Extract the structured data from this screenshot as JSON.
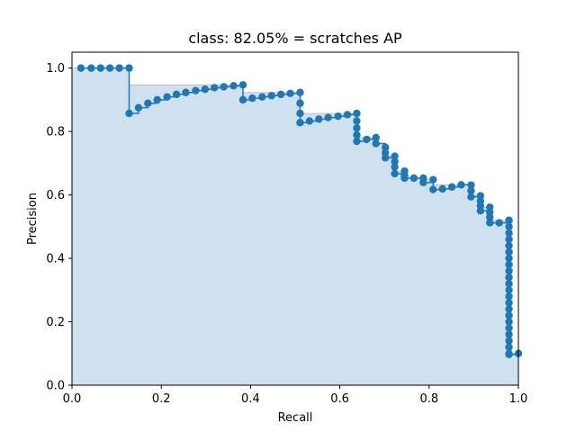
{
  "chart_data": {
    "type": "line",
    "title": "class: 82.05% = scratches AP",
    "xlabel": "Recall",
    "ylabel": "Precision",
    "xlim": [
      0,
      1
    ],
    "ylim": [
      0,
      1.05
    ],
    "xticks": [
      "0.0",
      "0.2",
      "0.4",
      "0.6",
      "0.8",
      "1.0"
    ],
    "yticks": [
      "0.0",
      "0.2",
      "0.4",
      "0.6",
      "0.8",
      "1.0"
    ],
    "grid": false,
    "colors": {
      "series": "#1f77b4",
      "fill": "#cfe1ef",
      "fill_edge": "#d9a6a6"
    },
    "series": [
      {
        "marker": "circle",
        "x": [
          0.02,
          0.043,
          0.064,
          0.085,
          0.106,
          0.128,
          0.128,
          0.149,
          0.17,
          0.191,
          0.213,
          0.234,
          0.255,
          0.277,
          0.298,
          0.319,
          0.34,
          0.362,
          0.383,
          0.383,
          0.404,
          0.426,
          0.447,
          0.468,
          0.489,
          0.511,
          0.511,
          0.511,
          0.511,
          0.532,
          0.553,
          0.574,
          0.596,
          0.617,
          0.638,
          0.638,
          0.638,
          0.638,
          0.638,
          0.66,
          0.681,
          0.681,
          0.702,
          0.702,
          0.702,
          0.723,
          0.723,
          0.723,
          0.723,
          0.745,
          0.745,
          0.745,
          0.766,
          0.787,
          0.787,
          0.809,
          0.809,
          0.83,
          0.851,
          0.872,
          0.894,
          0.894,
          0.894,
          0.915,
          0.915,
          0.915,
          0.915,
          0.936,
          0.936,
          0.936,
          0.936,
          0.957,
          0.979,
          0.979,
          0.979,
          0.979,
          0.979,
          0.979,
          0.979,
          0.979,
          0.979,
          0.979,
          0.979,
          0.979,
          0.979,
          0.979,
          0.979,
          0.979,
          0.979,
          0.979,
          0.979,
          0.979,
          0.979,
          0.979,
          0.979,
          1.0
        ],
        "y": [
          1.0,
          1.0,
          1.0,
          1.0,
          1.0,
          1.0,
          0.857,
          0.875,
          0.889,
          0.9,
          0.909,
          0.917,
          0.923,
          0.929,
          0.933,
          0.938,
          0.941,
          0.944,
          0.947,
          0.9,
          0.905,
          0.909,
          0.913,
          0.917,
          0.92,
          0.923,
          0.889,
          0.857,
          0.828,
          0.833,
          0.839,
          0.844,
          0.848,
          0.853,
          0.857,
          0.833,
          0.811,
          0.789,
          0.769,
          0.775,
          0.781,
          0.762,
          0.75,
          0.733,
          0.717,
          0.722,
          0.705,
          0.688,
          0.667,
          0.675,
          0.66,
          0.653,
          0.653,
          0.653,
          0.639,
          0.648,
          0.617,
          0.619,
          0.625,
          0.632,
          0.631,
          0.613,
          0.594,
          0.597,
          0.581,
          0.566,
          0.55,
          0.561,
          0.545,
          0.53,
          0.512,
          0.512,
          0.52,
          0.5,
          0.48,
          0.46,
          0.44,
          0.42,
          0.4,
          0.38,
          0.36,
          0.34,
          0.32,
          0.3,
          0.28,
          0.26,
          0.24,
          0.22,
          0.2,
          0.18,
          0.16,
          0.14,
          0.12,
          0.1,
          0.097,
          0.1
        ]
      }
    ]
  }
}
